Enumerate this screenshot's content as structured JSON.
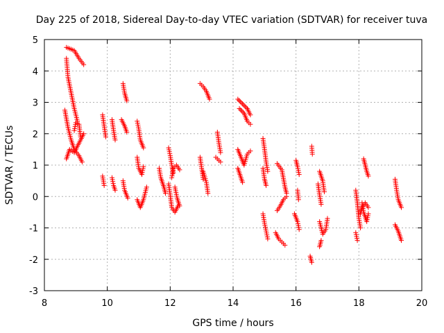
{
  "chart_data": {
    "type": "scatter",
    "title": "Day 225 of 2018, Sidereal Day-to-day VTEC variation (SDTVAR) for receiver tuva",
    "xlabel": "GPS time / hours",
    "ylabel": "SDTVAR / TECUs",
    "xlim": [
      8,
      20
    ],
    "ylim": [
      -3,
      5
    ],
    "xticks": [
      8,
      10,
      12,
      14,
      16,
      18,
      20
    ],
    "yticks": [
      -3,
      -2,
      -1,
      0,
      1,
      2,
      3,
      4,
      5
    ],
    "xtick_labels": [
      "8",
      "10",
      "12",
      "14",
      "16",
      "18",
      "20"
    ],
    "ytick_labels": [
      "-3",
      "-2",
      "-1",
      "0",
      "1",
      "2",
      "3",
      "4",
      "5"
    ],
    "grid": true,
    "marker": "+",
    "color": "#ff0000",
    "series": [
      {
        "name": "tracks",
        "tracks": [
          [
            [
              8.7,
              4.75
            ],
            [
              8.95,
              4.65
            ],
            [
              9.1,
              4.4
            ],
            [
              9.25,
              4.2
            ]
          ],
          [
            [
              8.7,
              4.4
            ],
            [
              8.75,
              3.8
            ],
            [
              8.85,
              3.3
            ],
            [
              8.95,
              2.8
            ],
            [
              9.05,
              2.4
            ]
          ],
          [
            [
              8.65,
              2.75
            ],
            [
              8.75,
              2.2
            ],
            [
              8.85,
              1.8
            ],
            [
              8.95,
              1.5
            ],
            [
              9.1,
              1.3
            ],
            [
              9.2,
              1.1
            ]
          ],
          [
            [
              8.7,
              1.2
            ],
            [
              8.8,
              1.5
            ],
            [
              8.95,
              1.4
            ],
            [
              9.1,
              1.7
            ],
            [
              9.25,
              2.0
            ]
          ],
          [
            [
              8.95,
              2.1
            ],
            [
              9.0,
              2.35
            ],
            [
              9.1,
              2.3
            ],
            [
              9.15,
              1.9
            ]
          ],
          [
            [
              9.85,
              2.6
            ],
            [
              9.9,
              2.25
            ],
            [
              9.95,
              1.9
            ]
          ],
          [
            [
              9.85,
              0.65
            ],
            [
              9.9,
              0.35
            ]
          ],
          [
            [
              10.15,
              2.45
            ],
            [
              10.2,
              2.1
            ],
            [
              10.25,
              1.8
            ]
          ],
          [
            [
              10.15,
              0.6
            ],
            [
              10.2,
              0.35
            ],
            [
              10.25,
              0.2
            ]
          ],
          [
            [
              10.5,
              3.6
            ],
            [
              10.55,
              3.3
            ],
            [
              10.62,
              3.05
            ]
          ],
          [
            [
              10.45,
              2.45
            ],
            [
              10.55,
              2.25
            ],
            [
              10.62,
              2.05
            ]
          ],
          [
            [
              10.5,
              0.5
            ],
            [
              10.55,
              0.2
            ],
            [
              10.65,
              -0.05
            ]
          ],
          [
            [
              10.95,
              2.4
            ],
            [
              11.0,
              2.15
            ],
            [
              11.05,
              1.8
            ],
            [
              11.15,
              1.55
            ]
          ],
          [
            [
              10.95,
              1.25
            ],
            [
              11.0,
              0.9
            ],
            [
              11.1,
              0.7
            ],
            [
              11.15,
              0.95
            ]
          ],
          [
            [
              10.95,
              -0.1
            ],
            [
              11.05,
              -0.35
            ],
            [
              11.15,
              -0.1
            ],
            [
              11.25,
              0.3
            ]
          ],
          [
            [
              11.65,
              0.9
            ],
            [
              11.7,
              0.6
            ],
            [
              11.8,
              0.3
            ],
            [
              11.85,
              0.1
            ]
          ],
          [
            [
              11.95,
              1.55
            ],
            [
              12.0,
              1.3
            ],
            [
              12.05,
              1.0
            ],
            [
              12.1,
              0.75
            ]
          ],
          [
            [
              11.95,
              0.4
            ],
            [
              12.0,
              0.05
            ],
            [
              12.05,
              -0.35
            ],
            [
              12.15,
              -0.5
            ],
            [
              12.25,
              -0.3
            ]
          ],
          [
            [
              12.05,
              0.6
            ],
            [
              12.1,
              0.9
            ],
            [
              12.2,
              1.0
            ],
            [
              12.3,
              0.85
            ]
          ],
          [
            [
              12.15,
              0.3
            ],
            [
              12.22,
              -0.05
            ],
            [
              12.3,
              -0.3
            ]
          ],
          [
            [
              12.95,
              3.6
            ],
            [
              13.05,
              3.5
            ],
            [
              13.15,
              3.35
            ],
            [
              13.25,
              3.1
            ]
          ],
          [
            [
              12.95,
              1.25
            ],
            [
              13.0,
              0.9
            ],
            [
              13.05,
              0.55
            ]
          ],
          [
            [
              13.05,
              0.8
            ],
            [
              13.15,
              0.45
            ],
            [
              13.2,
              0.1
            ]
          ],
          [
            [
              13.5,
              2.05
            ],
            [
              13.55,
              1.7
            ],
            [
              13.6,
              1.4
            ]
          ],
          [
            [
              13.45,
              1.25
            ],
            [
              13.55,
              1.15
            ],
            [
              13.6,
              1.1
            ]
          ],
          [
            [
              14.15,
              3.1
            ],
            [
              14.3,
              2.95
            ],
            [
              14.45,
              2.8
            ],
            [
              14.55,
              2.6
            ]
          ],
          [
            [
              14.2,
              2.8
            ],
            [
              14.35,
              2.65
            ],
            [
              14.45,
              2.4
            ],
            [
              14.55,
              2.3
            ]
          ],
          [
            [
              14.15,
              1.5
            ],
            [
              14.25,
              1.25
            ],
            [
              14.35,
              1.0
            ],
            [
              14.45,
              1.35
            ],
            [
              14.55,
              1.45
            ]
          ],
          [
            [
              14.15,
              0.9
            ],
            [
              14.25,
              0.6
            ],
            [
              14.3,
              0.45
            ]
          ],
          [
            [
              14.95,
              1.85
            ],
            [
              15.0,
              1.5
            ],
            [
              15.05,
              1.1
            ],
            [
              15.1,
              0.8
            ]
          ],
          [
            [
              14.95,
              0.9
            ],
            [
              15.0,
              0.55
            ],
            [
              15.05,
              0.35
            ]
          ],
          [
            [
              14.95,
              -0.55
            ],
            [
              15.0,
              -0.85
            ],
            [
              15.05,
              -1.1
            ],
            [
              15.1,
              -1.35
            ]
          ],
          [
            [
              15.4,
              1.05
            ],
            [
              15.55,
              0.85
            ],
            [
              15.65,
              0.3
            ],
            [
              15.7,
              0.1
            ]
          ],
          [
            [
              15.4,
              -0.45
            ],
            [
              15.5,
              -0.3
            ],
            [
              15.6,
              -0.1
            ],
            [
              15.7,
              0.0
            ]
          ],
          [
            [
              15.35,
              -1.15
            ],
            [
              15.45,
              -1.35
            ],
            [
              15.55,
              -1.45
            ],
            [
              15.65,
              -1.55
            ]
          ],
          [
            [
              16.0,
              1.15
            ],
            [
              16.05,
              0.95
            ],
            [
              16.1,
              0.7
            ]
          ],
          [
            [
              16.05,
              0.2
            ],
            [
              16.08,
              -0.1
            ]
          ],
          [
            [
              15.95,
              -0.55
            ],
            [
              16.05,
              -0.8
            ],
            [
              16.1,
              -1.05
            ]
          ],
          [
            [
              16.5,
              1.6
            ],
            [
              16.52,
              1.35
            ]
          ],
          [
            [
              16.45,
              -1.9
            ],
            [
              16.5,
              -2.1
            ]
          ],
          [
            [
              16.75,
              0.8
            ],
            [
              16.85,
              0.5
            ],
            [
              16.9,
              0.15
            ]
          ],
          [
            [
              16.7,
              0.4
            ],
            [
              16.75,
              0.05
            ],
            [
              16.8,
              -0.25
            ]
          ],
          [
            [
              16.75,
              -0.8
            ],
            [
              16.85,
              -1.2
            ],
            [
              16.95,
              -1.05
            ],
            [
              17.0,
              -0.7
            ]
          ],
          [
            [
              16.8,
              -1.4
            ],
            [
              16.75,
              -1.6
            ]
          ],
          [
            [
              17.9,
              0.2
            ],
            [
              17.95,
              -0.2
            ],
            [
              18.0,
              -0.7
            ],
            [
              18.05,
              -1.0
            ]
          ],
          [
            [
              17.9,
              -1.15
            ],
            [
              17.95,
              -1.4
            ]
          ],
          [
            [
              18.05,
              -0.55
            ],
            [
              18.1,
              -0.35
            ],
            [
              18.2,
              -0.2
            ],
            [
              18.3,
              -0.35
            ]
          ],
          [
            [
              18.1,
              -0.2
            ],
            [
              18.15,
              -0.5
            ],
            [
              18.25,
              -0.8
            ],
            [
              18.3,
              -0.55
            ]
          ],
          [
            [
              18.15,
              1.2
            ],
            [
              18.2,
              1.0
            ],
            [
              18.25,
              0.8
            ],
            [
              18.3,
              0.65
            ]
          ],
          [
            [
              19.15,
              0.55
            ],
            [
              19.2,
              0.2
            ],
            [
              19.25,
              -0.1
            ],
            [
              19.35,
              -0.35
            ]
          ],
          [
            [
              19.15,
              -0.9
            ],
            [
              19.25,
              -1.1
            ],
            [
              19.3,
              -1.25
            ],
            [
              19.35,
              -1.4
            ]
          ]
        ]
      }
    ]
  }
}
